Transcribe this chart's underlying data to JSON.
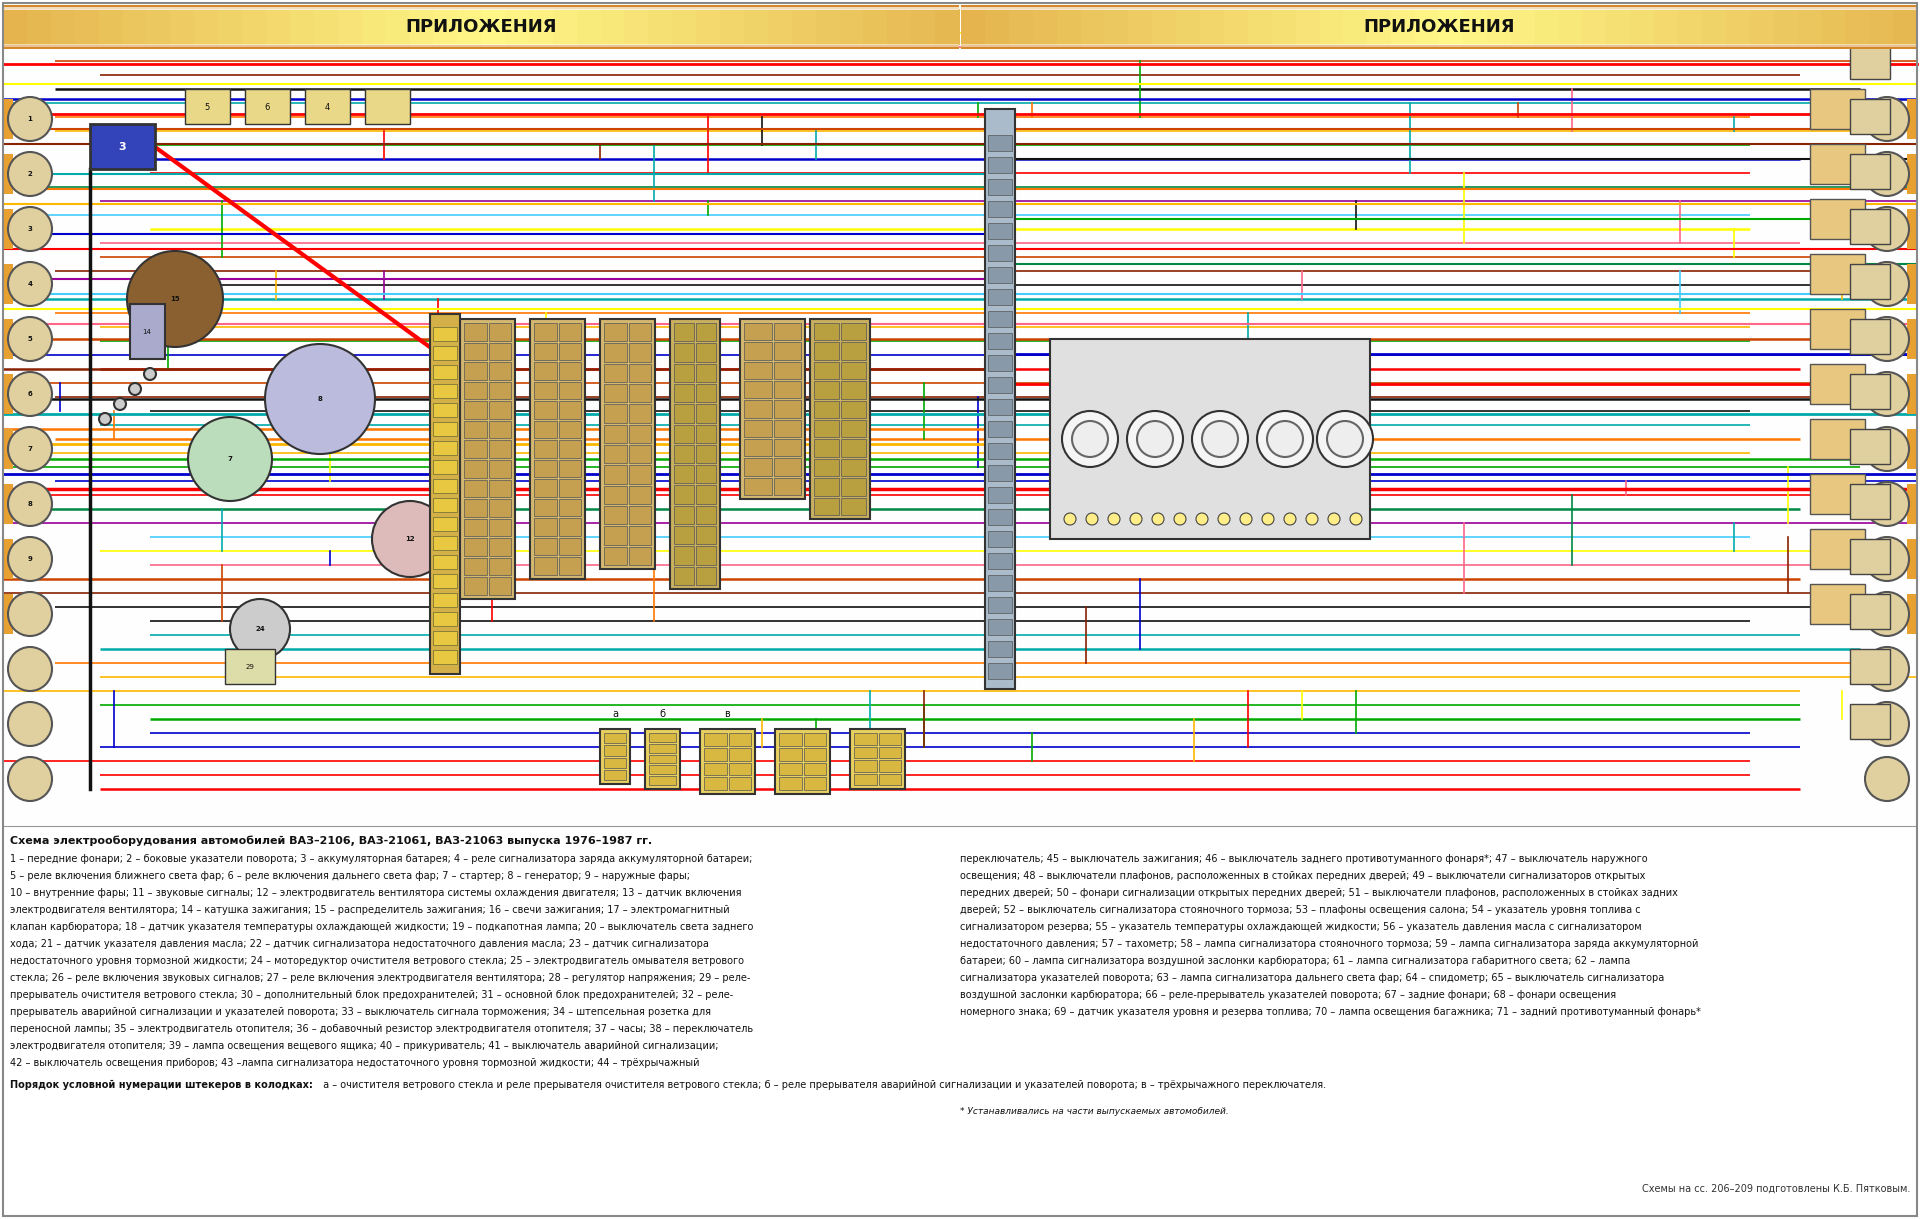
{
  "title_left": "ПРИЛОЖЕНИЯ",
  "title_right": "ПРИЛОЖЕНИЯ",
  "background_color": "#FFFFFF",
  "header_color_outer": "#D4882A",
  "header_color_mid": "#E8A840",
  "header_color_center": "#F8D888",
  "header_text_color": "#111111",
  "page_bg": "#FFFFFF",
  "diagram_bg": "#FFFFFF",
  "footer_bg": "#FFFFFF",
  "footer_text_color": "#111111",
  "title_line1": "Схема электрооборудования автомобилей ВАЗ–2106, ВАЗ-21061, ВАЗ-21063 выпуска 1976–1987 гг.",
  "footer_col1": [
    "1 – передние фонари; 2 – боковые указатели поворота; 3 – аккумуляторная батарея; 4 – реле сигнализатора заряда аккумуляторной батареи;",
    "5 – реле включения ближнего света фар; 6 – реле включения дальнего света фар; 7 – стартер; 8 – генератор; 9 – наружные фары;",
    "10 – внутренние фары; 11 – звуковые сигналы; 12 – электродвигатель вентилятора системы охлаждения двигателя; 13 – датчик включения",
    "электродвигателя вентилятора; 14 – катушка зажигания; 15 – распределитель зажигания; 16 – свечи зажигания; 17 – электромагнитный",
    "клапан карбюратора; 18 – датчик указателя температуры охлаждающей жидкости; 19 – подкапотная лампа; 20 – выключатель света заднего",
    "хода; 21 – датчик указателя давления масла; 22 – датчик сигнализатора недостаточного давления масла; 23 – датчик сигнализатора",
    "недостаточного уровня тормозной жидкости; 24 – моторедуктор очистителя ветрового стекла; 25 – электродвигатель омывателя ветрового",
    "стекла; 26 – реле включения звуковых сигналов; 27 – реле включения электродвигателя вентилятора; 28 – регулятор напряжения; 29 – реле-",
    "прерыватель очистителя ветрового стекла; 30 – дополнительный блок предохранителей; 31 – основной блок предохранителей; 32 – реле-",
    "прерыватель аварийной сигнализации и указателей поворота; 33 – выключатель сигнала торможения; 34 – штепсельная розетка для",
    "переносной лампы; 35 – электродвигатель отопителя; 36 – добавочный резистор электродвигателя отопителя; 37 – часы; 38 – переключатель",
    "электродвигателя отопителя; 39 – лампа освещения вещевого ящика; 40 – прикуриватель; 41 – выключатель аварийной сигнализации;",
    "42 – выключатель освещения приборов; 43 –лампа сигнализатора недостаточного уровня тормозной жидкости; 44 – трёхрычажный"
  ],
  "footer_col2": [
    "переключатель; 45 – выключатель зажигания; 46 – выключатель заднего противотуманного фонаря*; 47 – выключатель наружного",
    "освещения; 48 – выключатели плафонов, расположенных в стойках передних дверей; 49 – выключатели сигнализаторов открытых",
    "передних дверей; 50 – фонари сигнализации открытых передних дверей; 51 – выключатели плафонов, расположенных в стойках задних",
    "дверей; 52 – выключатель сигнализатора стояночного тормоза; 53 – плафоны освещения салона; 54 – указатель уровня топлива с",
    "сигнализатором резерва; 55 – указатель температуры охлаждающей жидкости; 56 – указатель давления масла с сигнализатором",
    "недостаточного давления; 57 – тахометр; 58 – лампа сигнализатора стояночного тормоза; 59 – лампа сигнализатора заряда аккумуляторной",
    "батареи; 60 – лампа сигнализатора воздушной заслонки карбюратора; 61 – лампа сигнализатора габаритного света; 62 – лампа",
    "сигнализатора указателей поворота; 63 – лампа сигнализатора дальнего света фар; 64 – спидометр; 65 – выключатель сигнализатора",
    "воздушной заслонки карбюратора; 66 – реле-прерыватель указателей поворота; 67 – задние фонари; 68 – фонари освещения",
    "номерного знака; 69 – датчик указателя уровня и резерва топлива; 70 – лампа освещения багажника; 71 – задний противотуманный фонарь*"
  ],
  "footer_note_bold": "Порядок условной нумерации штекеров в колодках:",
  "footer_note_text": " а – очистителя ветрового стекла и реле прерывателя очистителя ветрового стекла; б – реле прерывателя аварийной сигнализации и указателей поворота; в – трёхрычажного переключателя.",
  "footer_asterisk": "* Устанавливались на части выпускаемых автомобилей.",
  "footer_credit": "Схемы на сс. 206–209 подготовлены К.Б. Пятковым.",
  "wire_colors": [
    "#FF0000",
    "#0000CC",
    "#00AA00",
    "#FFB800",
    "#FF7700",
    "#00AAAA",
    "#990099",
    "#882200",
    "#FF6688",
    "#111111",
    "#008844",
    "#CC4400",
    "#6666FF",
    "#FFFF00",
    "#FF44AA",
    "#44CCFF"
  ]
}
